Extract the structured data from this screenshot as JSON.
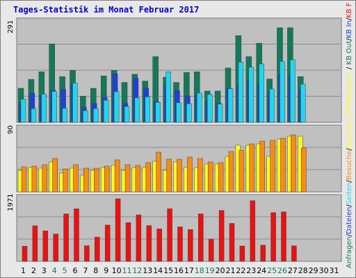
{
  "title": "Tages-Statistik im Monat Februar 2017",
  "colors": {
    "background": "#e8e8e8",
    "plot_bg": "#c0c0c0",
    "grid": "#8c8c8c",
    "anfragen": "#127a5a",
    "dateien": "#1f3ee0",
    "seiten": "#21d6f0",
    "rechner": "#fcfc1a",
    "besuche": "#f88c10",
    "kb_f": "#ee1010",
    "weekday_label": "#000000",
    "weekend_label": "#127a5a"
  },
  "legend_right": [
    {
      "text": "Anfragen",
      "color": "#127a5a"
    },
    {
      "text": "/",
      "color": "#000000"
    },
    {
      "text": "Dateien",
      "color": "#1f3ee0"
    },
    {
      "text": "/",
      "color": "#000000"
    },
    {
      "text": "Seiten",
      "color": "#21d6f0"
    },
    {
      "text": "/",
      "color": "#000000"
    },
    {
      "text": "Besuche",
      "color": "#f88c10"
    },
    {
      "text": "/",
      "color": "#000000"
    },
    {
      "text": "Rechner (IP-Adressen)",
      "color": "#fcfc1a"
    },
    {
      "text": " / ",
      "color": "#000000"
    },
    {
      "text": "KB Out",
      "color": "#127a5a"
    },
    {
      "text": "/",
      "color": "#000000"
    },
    {
      "text": "KB In",
      "color": "#1f3ee0"
    },
    {
      "text": "/",
      "color": "#000000"
    },
    {
      "text": "KB F",
      "color": "#ee1010"
    }
  ],
  "chart_data": [
    {
      "type": "bar",
      "panel": "top",
      "ymax_label": "291",
      "ylim": [
        0,
        291
      ],
      "categories": [
        "1",
        "2",
        "3",
        "4",
        "5",
        "6",
        "7",
        "8",
        "9",
        "10",
        "11",
        "12",
        "13",
        "14",
        "15",
        "16",
        "17",
        "18",
        "19",
        "20",
        "21",
        "22",
        "23",
        "24",
        "25",
        "26",
        "27",
        "28",
        "29",
        "30",
        "31"
      ],
      "weekend_days": [
        "4",
        "5",
        "11",
        "12",
        "18",
        "19",
        "25",
        "26"
      ],
      "series": [
        {
          "name": "Anfragen",
          "values": [
            99,
            125,
            147,
            228,
            133,
            151,
            76,
            99,
            135,
            151,
            116,
            140,
            120,
            191,
            131,
            116,
            145,
            147,
            91,
            91,
            158,
            252,
            191,
            230,
            126,
            275,
            275,
            133,
            0,
            0,
            0
          ]
        },
        {
          "name": "Dateien",
          "values": [
            53,
            85,
            79,
            94,
            96,
            113,
            44,
            55,
            72,
            141,
            55,
            128,
            99,
            60,
            104,
            92,
            77,
            82,
            62,
            55,
            99,
            105,
            121,
            109,
            91,
            139,
            135,
            96,
            0,
            0,
            0
          ]
        },
        {
          "name": "Seiten",
          "values": [
            67,
            40,
            82,
            90,
            41,
            114,
            34,
            40,
            64,
            89,
            46,
            71,
            74,
            58,
            147,
            57,
            54,
            85,
            81,
            53,
            98,
            175,
            160,
            170,
            97,
            177,
            182,
            111,
            0,
            0,
            0
          ]
        }
      ]
    },
    {
      "type": "bar",
      "panel": "middle",
      "ymax_label": "90",
      "ylim": [
        0,
        90
      ],
      "categories": [
        "1",
        "2",
        "3",
        "4",
        "5",
        "6",
        "7",
        "8",
        "9",
        "10",
        "11",
        "12",
        "13",
        "14",
        "15",
        "16",
        "17",
        "18",
        "19",
        "20",
        "21",
        "22",
        "23",
        "24",
        "25",
        "26",
        "27",
        "28",
        "29",
        "30",
        "31"
      ],
      "series": [
        {
          "name": "Rechner",
          "values": [
            31,
            35,
            34,
            43,
            27,
            34,
            24,
            31,
            35,
            38,
            31,
            35,
            35,
            44,
            31,
            43,
            35,
            35,
            40,
            40,
            51,
            67,
            67,
            69,
            51,
            76,
            80,
            80,
            0,
            0,
            0
          ]
        },
        {
          "name": "Besuche",
          "values": [
            36,
            37,
            39,
            48,
            33,
            39,
            34,
            34,
            37,
            46,
            39,
            38,
            42,
            57,
            47,
            47,
            50,
            48,
            43,
            42,
            58,
            60,
            69,
            73,
            74,
            77,
            82,
            63,
            0,
            0,
            0
          ]
        }
      ]
    },
    {
      "type": "bar",
      "panel": "bottom",
      "ymax_label": "1971",
      "ylim": [
        0,
        1971
      ],
      "categories": [
        "1",
        "2",
        "3",
        "4",
        "5",
        "6",
        "7",
        "8",
        "9",
        "10",
        "11",
        "12",
        "13",
        "14",
        "15",
        "16",
        "17",
        "18",
        "19",
        "20",
        "21",
        "22",
        "23",
        "24",
        "25",
        "26",
        "27",
        "28",
        "29",
        "30",
        "31"
      ],
      "series": [
        {
          "name": "KB F",
          "values": [
            477,
            1120,
            960,
            862,
            1495,
            1655,
            492,
            764,
            1144,
            1971,
            1219,
            1465,
            1126,
            1023,
            1656,
            1086,
            1002,
            1495,
            700,
            1602,
            1195,
            482,
            1910,
            509,
            1534,
            1558,
            486,
            0,
            0,
            0,
            0
          ]
        }
      ]
    }
  ]
}
